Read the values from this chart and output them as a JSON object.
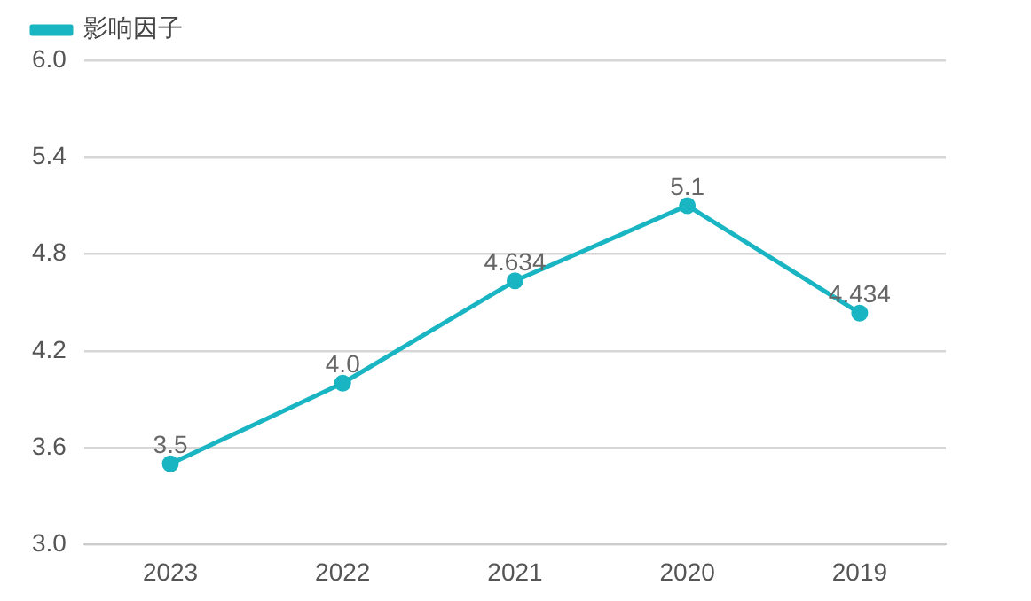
{
  "chart_data": {
    "type": "line",
    "categories": [
      "2023",
      "2022",
      "2021",
      "2020",
      "2019"
    ],
    "series": [
      {
        "name": "影响因子",
        "color": "#1ab5c3",
        "values": [
          3.5,
          4.0,
          4.634,
          5.1,
          4.434
        ],
        "value_labels": [
          "3.5",
          "4.0",
          "4.634",
          "5.1",
          "4.434"
        ]
      }
    ],
    "ylim": [
      3.0,
      6.0
    ],
    "yticks": [
      {
        "value": 3.0,
        "label": "3.0"
      },
      3.6,
      4.2,
      4.8,
      5.4,
      {
        "value": 6.0,
        "label": "6.0"
      }
    ],
    "grid": "y",
    "legend": "top left",
    "marker": "circle",
    "line_style": "solid"
  }
}
